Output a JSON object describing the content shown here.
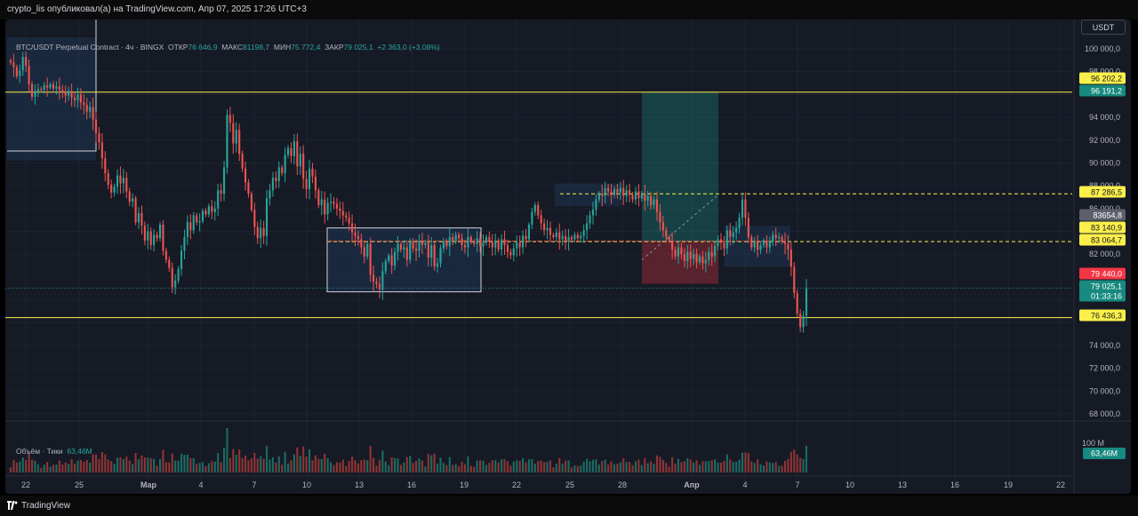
{
  "header": {
    "publish_info": "crypto_lis опубликовал(а) на TradingView.com, Апр 07, 2025 17:26 UTC+3"
  },
  "legend": {
    "symbol": "BTC/USDT Perpetual Contract · 4ч · BINGX",
    "open_label": "ОТКР",
    "open": "76 646,9",
    "high_label": "МАКС",
    "high": "81198,7",
    "low_label": "МИН",
    "low": "75 772,4",
    "close_label": "ЗАКР",
    "close": "79 025,1",
    "change": "+2 363,0 (+3,08%)"
  },
  "volume": {
    "label": "Объём · Тики",
    "value": "63,46M",
    "axis_label": "100 M",
    "badge": "63,46M"
  },
  "currency_button": "USDT",
  "price_axis": {
    "ticks": [
      "100 000,0",
      "98 000,0",
      "94 000,0",
      "92 000,0",
      "90 000,0",
      "88 000,0",
      "86 000,0",
      "82 000,0",
      "74 000,0",
      "72 000,0",
      "70 000,0",
      "68 000,0"
    ],
    "tags": [
      {
        "text": "96 202,2",
        "bg": "#fbf04b",
        "fg": "#131722"
      },
      {
        "text": "96 191,2",
        "bg": "#17897f",
        "fg": "#ffffff"
      },
      {
        "text": "87 286,5",
        "bg": "#fbf04b",
        "fg": "#131722"
      },
      {
        "text": "83654,8",
        "bg": "#5d606b",
        "fg": "#ffffff"
      },
      {
        "text": "83 140,9",
        "bg": "#fbf04b",
        "fg": "#131722"
      },
      {
        "text": "83 064,7",
        "bg": "#fbf04b",
        "fg": "#131722"
      },
      {
        "text": "79 440,0",
        "bg": "#f23645",
        "fg": "#ffffff"
      },
      {
        "text": "79 025,1",
        "bg": "#17897f",
        "fg": "#ffffff"
      },
      {
        "text": "01:33:16",
        "bg": "#17897f",
        "fg": "#ffffff"
      },
      {
        "text": "76 436,3",
        "bg": "#fbf04b",
        "fg": "#131722"
      }
    ]
  },
  "time_axis": {
    "labels": [
      "22",
      "25",
      "Мар",
      "4",
      "7",
      "10",
      "13",
      "16",
      "19",
      "22",
      "25",
      "28",
      "Апр",
      "4",
      "7",
      "10",
      "13",
      "16",
      "19",
      "22"
    ]
  },
  "footer": {
    "brand": "TradingView"
  },
  "colors": {
    "up": "#26a69a",
    "down": "#ef5350",
    "level_line": "#fbf04b",
    "background": "#161a25"
  },
  "chart_data": {
    "type": "candlestick",
    "symbol": "BTC/USDT",
    "interval": "4ч",
    "ylim": [
      67000,
      101500
    ],
    "closes": [
      98800,
      98400,
      97600,
      98100,
      99300,
      98500,
      96900,
      95800,
      96300,
      96500,
      96400,
      96800,
      96600,
      96900,
      96500,
      96700,
      96400,
      96200,
      95900,
      96300,
      95700,
      95500,
      96000,
      95300,
      95100,
      94500,
      94900,
      93800,
      92600,
      91800,
      90400,
      89100,
      88100,
      87400,
      87900,
      88900,
      88200,
      88700,
      87500,
      86600,
      86900,
      84800,
      85600,
      84500,
      83200,
      84000,
      82800,
      83700,
      83400,
      84600,
      82300,
      81500,
      80800,
      79100,
      79700,
      80700,
      82300,
      83500,
      84800,
      84100,
      85400,
      84800,
      84900,
      85800,
      85500,
      86200,
      85700,
      86000,
      87600,
      87300,
      89600,
      94200,
      93500,
      91700,
      92900,
      90800,
      89500,
      88300,
      87300,
      85900,
      84400,
      83400,
      84300,
      83600,
      86900,
      87600,
      88700,
      88400,
      89600,
      89100,
      90700,
      91300,
      90600,
      91900,
      89700,
      90800,
      88600,
      87700,
      89500,
      88800,
      87600,
      86300,
      86800,
      85500,
      86500,
      86600,
      86400,
      86000,
      85800,
      85400,
      85200,
      84700,
      83900,
      83600,
      83300,
      82600,
      81800,
      82900,
      80200,
      79600,
      79400,
      78900,
      80500,
      81400,
      81900,
      81000,
      82200,
      82900,
      82400,
      82600,
      81500,
      83100,
      82500,
      82300,
      83200,
      82800,
      83000,
      81700,
      82800,
      80900,
      81200,
      82500,
      83100,
      82700,
      83500,
      83200,
      83700,
      83400,
      82800,
      82600,
      83500,
      83100,
      82900,
      83400,
      82700,
      83000,
      83500,
      83100,
      82600,
      83200,
      82400,
      83300,
      82800,
      82200,
      81900,
      82500,
      83000,
      82600,
      83600,
      83300,
      84600,
      85700,
      86300,
      85400,
      84700,
      84100,
      84300,
      83700,
      83500,
      83900,
      83300,
      83600,
      83100,
      83500,
      83300,
      83700,
      83400,
      83600,
      84100,
      84700,
      85400,
      85900,
      86800,
      87300,
      87100,
      87800,
      87500,
      87200,
      87700,
      87400,
      87800,
      87100,
      87600,
      87200,
      86800,
      87500,
      86900,
      87300,
      86700,
      87100,
      86300,
      86800,
      85700,
      84800,
      84100,
      83500,
      83200,
      82400,
      81800,
      82600,
      82000,
      81400,
      82200,
      81600,
      82000,
      81300,
      81800,
      81200,
      81500,
      82200,
      81800,
      82700,
      83300,
      83000,
      82500,
      84100,
      83500,
      83900,
      84300,
      85200,
      86800,
      85200,
      83500,
      82600,
      83100,
      82400,
      82800,
      83200,
      82600,
      83100,
      83700,
      83400,
      83500,
      83100,
      82900,
      82400,
      80900,
      78600,
      76800,
      75600,
      76600,
      79025
    ]
  }
}
